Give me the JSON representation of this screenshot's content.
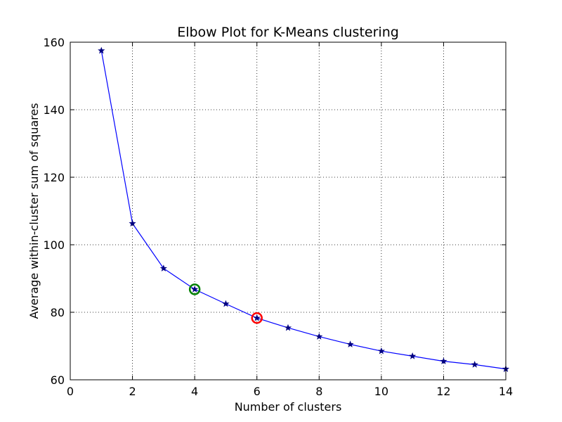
{
  "chart_data": {
    "type": "line",
    "title": "Elbow Plot for K-Means clustering",
    "xlabel": "Number of clusters",
    "ylabel": "Average within-cluster sum of squares",
    "xlim": [
      0,
      14
    ],
    "ylim": [
      60,
      160
    ],
    "xticks": [
      0,
      2,
      4,
      6,
      8,
      10,
      12,
      14
    ],
    "yticks": [
      60,
      80,
      100,
      120,
      140,
      160
    ],
    "grid": true,
    "series": [
      {
        "x": [
          1,
          2,
          3,
          4,
          5,
          6,
          7,
          8,
          9,
          10,
          11,
          12,
          13,
          14
        ],
        "values": [
          157.5,
          106.3,
          93.0,
          86.8,
          82.5,
          78.3,
          75.4,
          72.8,
          70.5,
          68.5,
          67.0,
          65.5,
          64.5,
          63.2
        ],
        "color": "#0000ff",
        "marker": "star",
        "marker_color": "#000080"
      }
    ],
    "highlights": [
      {
        "x": 4,
        "y": 86.8,
        "color": "#008000"
      },
      {
        "x": 6,
        "y": 78.3,
        "color": "#ff0000"
      }
    ]
  }
}
